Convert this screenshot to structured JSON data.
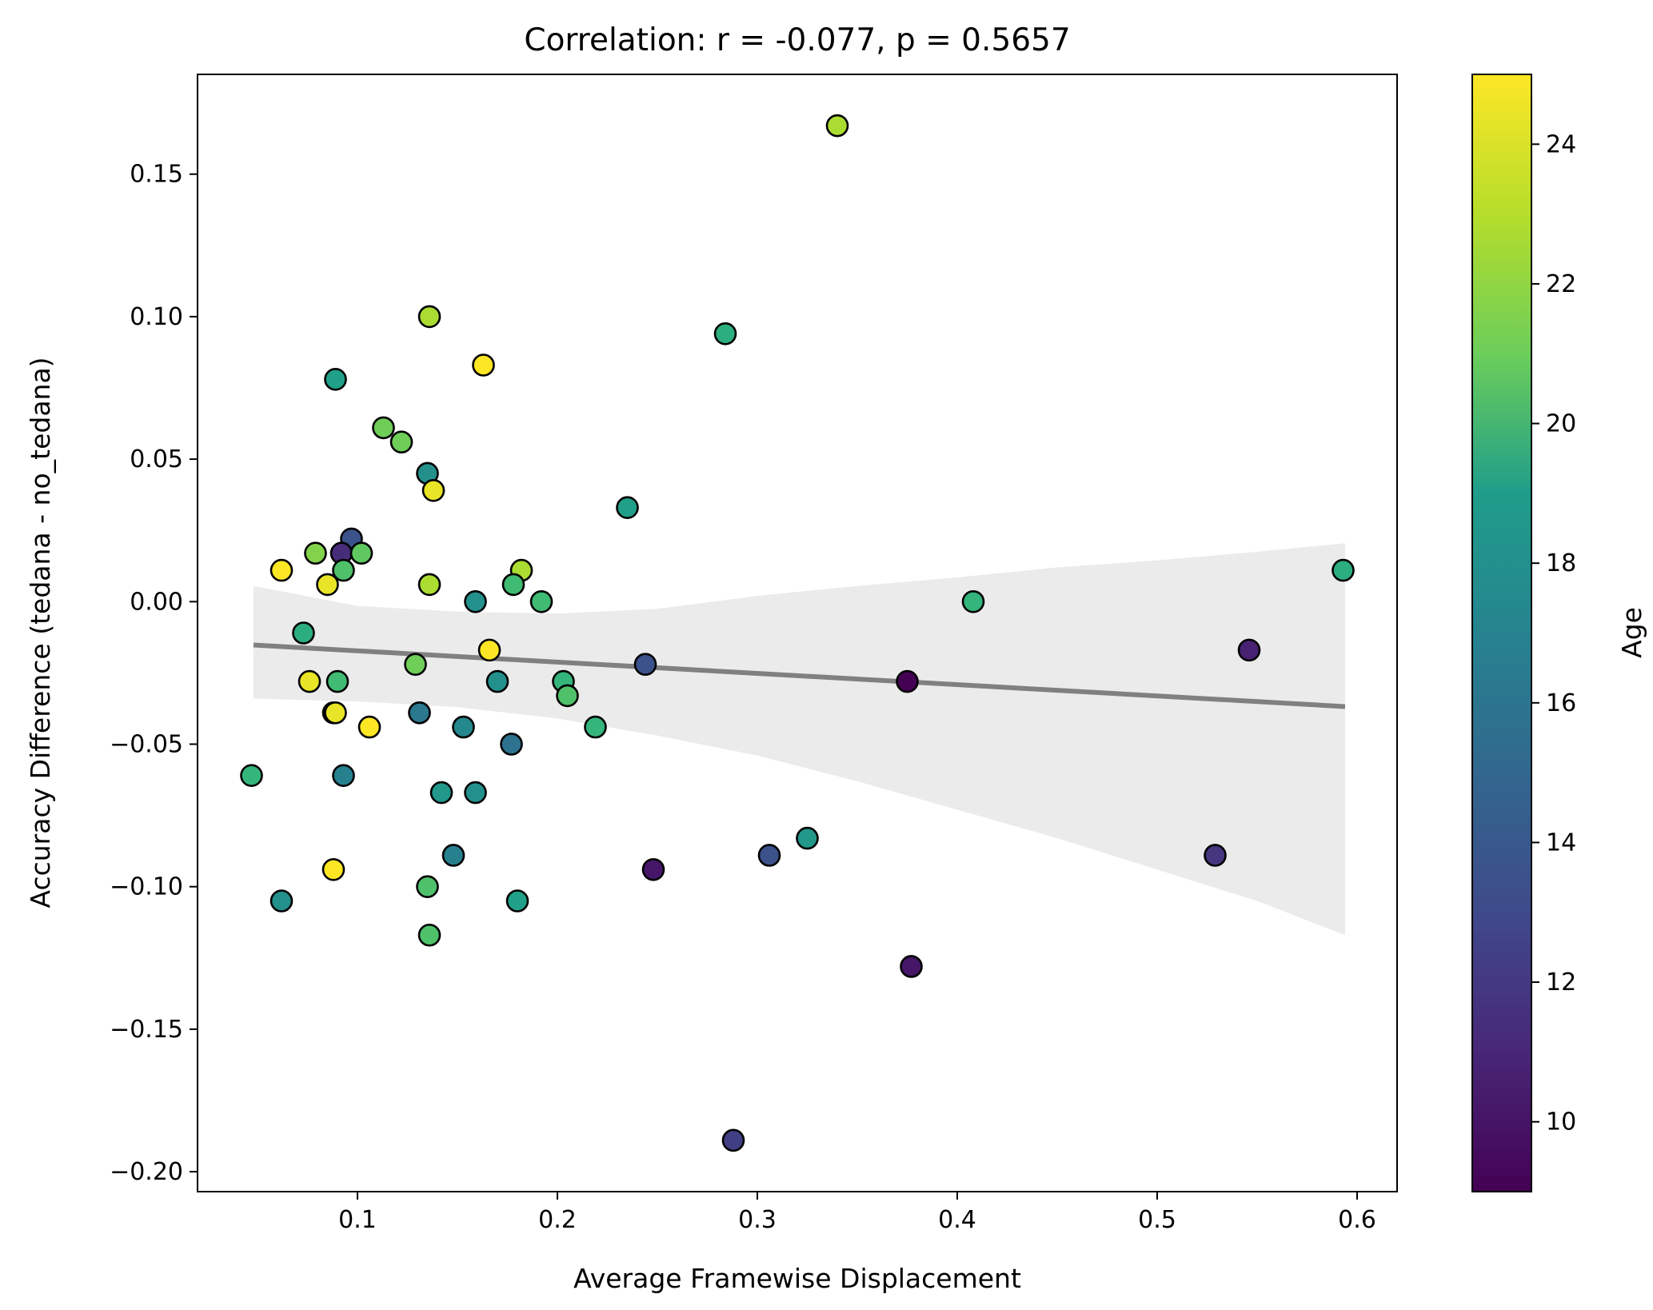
{
  "chart_data": {
    "type": "scatter",
    "title": "Correlation: r = -0.077, p = 0.5657",
    "xlabel": "Average Framewise Displacement",
    "ylabel": "Accuracy Difference (tedana - no_tedana)",
    "xlim": [
      0.02,
      0.62
    ],
    "ylim": [
      -0.207,
      0.185
    ],
    "x_ticks": [
      0.1,
      0.2,
      0.3,
      0.4,
      0.5,
      0.6
    ],
    "x_tick_labels": [
      "0.1",
      "0.2",
      "0.3",
      "0.4",
      "0.5",
      "0.6"
    ],
    "y_ticks": [
      -0.2,
      -0.15,
      -0.1,
      -0.05,
      0.0,
      0.05,
      0.1,
      0.15
    ],
    "y_tick_labels": [
      "−0.20",
      "−0.15",
      "−0.10",
      "−0.05",
      "0.00",
      "0.05",
      "0.10",
      "0.15"
    ],
    "grid": false,
    "colorbar": {
      "label": "Age",
      "colormap": "viridis",
      "range": [
        9,
        25
      ],
      "ticks": [
        10,
        12,
        14,
        16,
        18,
        20,
        22,
        24
      ],
      "tick_labels": [
        "10",
        "12",
        "14",
        "16",
        "18",
        "20",
        "22",
        "24"
      ]
    },
    "regression": {
      "color": "#808080",
      "x": [
        0.048,
        0.594
      ],
      "y": [
        -0.0152,
        -0.0368
      ],
      "ci_color": "#ebebeb",
      "ci_upper": [
        [
          0.048,
          0.0055
        ],
        [
          0.1,
          -0.0015
        ],
        [
          0.15,
          -0.0035
        ],
        [
          0.2,
          -0.0042
        ],
        [
          0.25,
          -0.0025
        ],
        [
          0.3,
          0.002
        ],
        [
          0.35,
          0.0055
        ],
        [
          0.4,
          0.0085
        ],
        [
          0.45,
          0.012
        ],
        [
          0.5,
          0.0145
        ],
        [
          0.55,
          0.0175
        ],
        [
          0.594,
          0.0205
        ]
      ],
      "ci_lower": [
        [
          0.048,
          -0.034
        ],
        [
          0.1,
          -0.035
        ],
        [
          0.15,
          -0.037
        ],
        [
          0.2,
          -0.041
        ],
        [
          0.25,
          -0.047
        ],
        [
          0.3,
          -0.054
        ],
        [
          0.35,
          -0.063
        ],
        [
          0.4,
          -0.073
        ],
        [
          0.45,
          -0.083
        ],
        [
          0.5,
          -0.094
        ],
        [
          0.55,
          -0.105
        ],
        [
          0.594,
          -0.117
        ]
      ]
    },
    "points": [
      {
        "x": 0.34,
        "y": 0.167,
        "age": 23
      },
      {
        "x": 0.136,
        "y": 0.1,
        "age": 23
      },
      {
        "x": 0.284,
        "y": 0.094,
        "age": 19
      },
      {
        "x": 0.163,
        "y": 0.083,
        "age": 25
      },
      {
        "x": 0.089,
        "y": 0.078,
        "age": 18
      },
      {
        "x": 0.113,
        "y": 0.061,
        "age": 21.5
      },
      {
        "x": 0.122,
        "y": 0.056,
        "age": 21.5
      },
      {
        "x": 0.135,
        "y": 0.045,
        "age": 17
      },
      {
        "x": 0.138,
        "y": 0.039,
        "age": 24.5
      },
      {
        "x": 0.235,
        "y": 0.033,
        "age": 18
      },
      {
        "x": 0.097,
        "y": 0.022,
        "age": 13
      },
      {
        "x": 0.092,
        "y": 0.017,
        "age": 11
      },
      {
        "x": 0.079,
        "y": 0.017,
        "age": 22
      },
      {
        "x": 0.102,
        "y": 0.017,
        "age": 21
      },
      {
        "x": 0.062,
        "y": 0.011,
        "age": 25
      },
      {
        "x": 0.093,
        "y": 0.011,
        "age": 20.5
      },
      {
        "x": 0.182,
        "y": 0.011,
        "age": 23
      },
      {
        "x": 0.593,
        "y": 0.011,
        "age": 19
      },
      {
        "x": 0.085,
        "y": 0.006,
        "age": 24.5
      },
      {
        "x": 0.136,
        "y": 0.006,
        "age": 23
      },
      {
        "x": 0.178,
        "y": 0.006,
        "age": 20
      },
      {
        "x": 0.159,
        "y": 0.0,
        "age": 17
      },
      {
        "x": 0.192,
        "y": 0.0,
        "age": 20
      },
      {
        "x": 0.408,
        "y": 0.0,
        "age": 19.5
      },
      {
        "x": 0.073,
        "y": -0.011,
        "age": 19
      },
      {
        "x": 0.166,
        "y": -0.017,
        "age": 25
      },
      {
        "x": 0.546,
        "y": -0.017,
        "age": 10.5
      },
      {
        "x": 0.129,
        "y": -0.022,
        "age": 21.5
      },
      {
        "x": 0.244,
        "y": -0.022,
        "age": 13
      },
      {
        "x": 0.076,
        "y": -0.028,
        "age": 24.5
      },
      {
        "x": 0.09,
        "y": -0.028,
        "age": 20
      },
      {
        "x": 0.17,
        "y": -0.028,
        "age": 17
      },
      {
        "x": 0.203,
        "y": -0.028,
        "age": 19.5
      },
      {
        "x": 0.375,
        "y": -0.028,
        "age": 9
      },
      {
        "x": 0.088,
        "y": -0.039,
        "age": 11
      },
      {
        "x": 0.089,
        "y": -0.039,
        "age": 24.5
      },
      {
        "x": 0.131,
        "y": -0.039,
        "age": 15.5
      },
      {
        "x": 0.205,
        "y": -0.033,
        "age": 20.5
      },
      {
        "x": 0.106,
        "y": -0.044,
        "age": 25
      },
      {
        "x": 0.153,
        "y": -0.044,
        "age": 16.5
      },
      {
        "x": 0.219,
        "y": -0.044,
        "age": 19.5
      },
      {
        "x": 0.177,
        "y": -0.05,
        "age": 15
      },
      {
        "x": 0.047,
        "y": -0.061,
        "age": 19.5
      },
      {
        "x": 0.093,
        "y": -0.061,
        "age": 16
      },
      {
        "x": 0.142,
        "y": -0.067,
        "age": 17.5
      },
      {
        "x": 0.159,
        "y": -0.067,
        "age": 17
      },
      {
        "x": 0.325,
        "y": -0.083,
        "age": 17.5
      },
      {
        "x": 0.148,
        "y": -0.089,
        "age": 16
      },
      {
        "x": 0.306,
        "y": -0.089,
        "age": 13
      },
      {
        "x": 0.529,
        "y": -0.089,
        "age": 11.5
      },
      {
        "x": 0.088,
        "y": -0.094,
        "age": 25
      },
      {
        "x": 0.248,
        "y": -0.094,
        "age": 10
      },
      {
        "x": 0.135,
        "y": -0.1,
        "age": 20.5
      },
      {
        "x": 0.062,
        "y": -0.105,
        "age": 17
      },
      {
        "x": 0.18,
        "y": -0.105,
        "age": 18
      },
      {
        "x": 0.136,
        "y": -0.117,
        "age": 20.5
      },
      {
        "x": 0.377,
        "y": -0.128,
        "age": 10
      },
      {
        "x": 0.288,
        "y": -0.189,
        "age": 12
      }
    ]
  }
}
